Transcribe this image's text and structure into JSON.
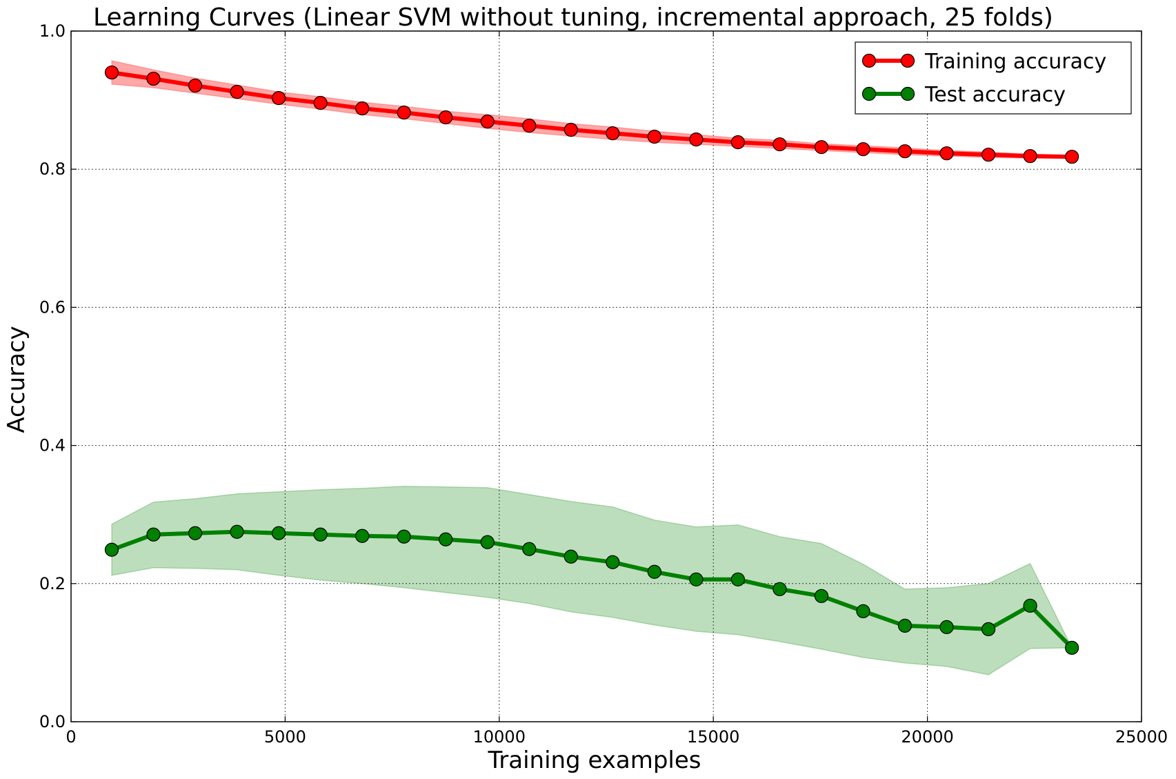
{
  "chart_data": {
    "type": "line",
    "title": "Learning Curves (Linear SVM without tuning, incremental approach, 25 folds)",
    "xlabel": "Training examples",
    "ylabel": "Accuracy",
    "xlim": [
      0,
      25000
    ],
    "ylim": [
      0.0,
      1.0
    ],
    "xticks": [
      0,
      5000,
      10000,
      15000,
      20000,
      25000
    ],
    "yticks": [
      0.0,
      0.2,
      0.4,
      0.6,
      0.8,
      1.0
    ],
    "xtick_labels": [
      "0",
      "5000",
      "10000",
      "15000",
      "20000",
      "25000"
    ],
    "ytick_labels": [
      "0.0",
      "0.2",
      "0.4",
      "0.6",
      "0.8",
      "1.0"
    ],
    "grid": true,
    "legend_position": "top-right",
    "x": [
      950,
      1925,
      2900,
      3875,
      4850,
      5825,
      6800,
      7775,
      8750,
      9725,
      10700,
      11675,
      12650,
      13625,
      14600,
      15575,
      16550,
      17525,
      18500,
      19475,
      20450,
      21425,
      22400,
      23375
    ],
    "series": [
      {
        "name": "Training accuracy",
        "color": "#ff0000",
        "band_color": "#ff9999",
        "values": [
          0.94,
          0.931,
          0.921,
          0.912,
          0.903,
          0.896,
          0.888,
          0.882,
          0.875,
          0.869,
          0.863,
          0.857,
          0.852,
          0.847,
          0.843,
          0.839,
          0.836,
          0.832,
          0.829,
          0.826,
          0.823,
          0.821,
          0.819,
          0.818
        ],
        "upper": [
          0.957,
          0.944,
          0.932,
          0.922,
          0.912,
          0.905,
          0.897,
          0.891,
          0.884,
          0.879,
          0.873,
          0.866,
          0.861,
          0.855,
          0.85,
          0.845,
          0.842,
          0.837,
          0.834,
          0.831,
          0.827,
          0.825,
          0.822,
          0.82
        ],
        "lower": [
          0.923,
          0.918,
          0.91,
          0.902,
          0.894,
          0.887,
          0.879,
          0.873,
          0.866,
          0.859,
          0.853,
          0.848,
          0.843,
          0.839,
          0.836,
          0.833,
          0.83,
          0.827,
          0.824,
          0.821,
          0.819,
          0.817,
          0.816,
          0.816
        ]
      },
      {
        "name": "Test accuracy",
        "color": "#008000",
        "band_color": "#b1d8b1",
        "values": [
          0.249,
          0.271,
          0.273,
          0.275,
          0.273,
          0.271,
          0.269,
          0.268,
          0.264,
          0.26,
          0.25,
          0.239,
          0.231,
          0.217,
          0.206,
          0.206,
          0.192,
          0.182,
          0.16,
          0.139,
          0.137,
          0.134,
          0.168,
          0.107
        ],
        "upper": [
          0.286,
          0.318,
          0.323,
          0.33,
          0.333,
          0.336,
          0.338,
          0.341,
          0.34,
          0.339,
          0.329,
          0.319,
          0.311,
          0.292,
          0.282,
          0.285,
          0.268,
          0.258,
          0.228,
          0.192,
          0.194,
          0.2,
          0.229,
          0.107
        ],
        "lower": [
          0.212,
          0.223,
          0.222,
          0.22,
          0.212,
          0.205,
          0.2,
          0.194,
          0.187,
          0.18,
          0.171,
          0.159,
          0.151,
          0.14,
          0.131,
          0.126,
          0.116,
          0.105,
          0.093,
          0.085,
          0.08,
          0.068,
          0.106,
          0.107
        ]
      }
    ]
  }
}
